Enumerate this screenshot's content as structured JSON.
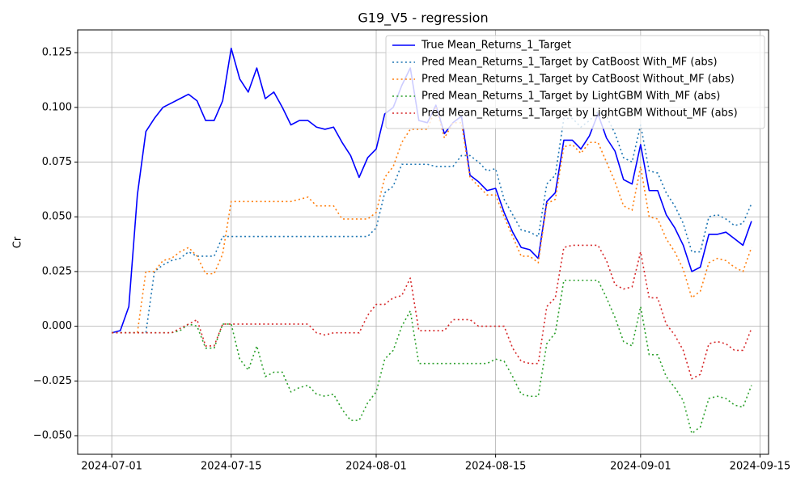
{
  "chart_data": {
    "type": "line",
    "title": "G19_V5 - regression",
    "y_label": "Cr",
    "grid": true,
    "legend": "upper right",
    "xlim": [
      "2024-06-27",
      "2024-09-16"
    ],
    "xticks": [
      "2024-07-01",
      "2024-07-15",
      "2024-08-01",
      "2024-08-15",
      "2024-09-01",
      "2024-09-15"
    ],
    "ylim": [
      -0.0585,
      0.1354
    ],
    "yticks": [
      {
        "value": -0.05,
        "label": "−0.050"
      },
      {
        "value": -0.025,
        "label": "−0.025"
      },
      {
        "value": 0,
        "label": "0.000"
      },
      0.025,
      {
        "value": 0.05,
        "label": "0.050"
      },
      0.075,
      {
        "value": 0.1,
        "label": "0.100"
      },
      0.125
    ],
    "x": [
      "2024-07-01",
      "2024-07-02",
      "2024-07-03",
      "2024-07-04",
      "2024-07-05",
      "2024-07-06",
      "2024-07-07",
      "2024-07-08",
      "2024-07-09",
      "2024-07-10",
      "2024-07-11",
      "2024-07-12",
      "2024-07-13",
      "2024-07-14",
      "2024-07-15",
      "2024-07-16",
      "2024-07-17",
      "2024-07-18",
      "2024-07-19",
      "2024-07-20",
      "2024-07-21",
      "2024-07-22",
      "2024-07-23",
      "2024-07-24",
      "2024-07-25",
      "2024-07-26",
      "2024-07-27",
      "2024-07-28",
      "2024-07-29",
      "2024-07-30",
      "2024-07-31",
      "2024-08-01",
      "2024-08-02",
      "2024-08-03",
      "2024-08-04",
      "2024-08-05",
      "2024-08-06",
      "2024-08-07",
      "2024-08-08",
      "2024-08-09",
      "2024-08-10",
      "2024-08-11",
      "2024-08-12",
      "2024-08-13",
      "2024-08-14",
      "2024-08-15",
      "2024-08-16",
      "2024-08-17",
      "2024-08-18",
      "2024-08-19",
      "2024-08-20",
      "2024-08-21",
      "2024-08-22",
      "2024-08-23",
      "2024-08-24",
      "2024-08-25",
      "2024-08-26",
      "2024-08-27",
      "2024-08-28",
      "2024-08-29",
      "2024-08-30",
      "2024-08-31",
      "2024-09-01",
      "2024-09-02",
      "2024-09-03",
      "2024-09-04",
      "2024-09-05",
      "2024-09-06",
      "2024-09-07",
      "2024-09-08",
      "2024-09-09",
      "2024-09-10",
      "2024-09-11",
      "2024-09-12",
      "2024-09-13",
      "2024-09-14"
    ],
    "series": [
      {
        "name": "True Mean_Returns_1_Target",
        "color": "#0000ff",
        "linestyle": "solid",
        "values": [
          -0.003,
          -0.002,
          0.009,
          0.06,
          0.089,
          0.095,
          0.1,
          0.102,
          0.104,
          0.106,
          0.103,
          0.094,
          0.094,
          0.103,
          0.127,
          0.113,
          0.107,
          0.118,
          0.104,
          0.107,
          0.1,
          0.092,
          0.094,
          0.094,
          0.091,
          0.09,
          0.091,
          0.084,
          0.078,
          0.068,
          0.077,
          0.081,
          0.097,
          0.1,
          0.11,
          0.118,
          0.094,
          0.093,
          0.101,
          0.088,
          0.093,
          0.096,
          0.069,
          0.066,
          0.062,
          0.063,
          0.052,
          0.043,
          0.036,
          0.035,
          0.031,
          0.057,
          0.061,
          0.085,
          0.085,
          0.081,
          0.087,
          0.097,
          0.086,
          0.08,
          0.067,
          0.065,
          0.083,
          0.062,
          0.062,
          0.051,
          0.045,
          0.037,
          0.025,
          0.027,
          0.042,
          0.042,
          0.043,
          0.04,
          0.037,
          0.048
        ]
      },
      {
        "name": "Pred Mean_Returns_1_Target by CatBoost With_MF (abs)",
        "color": "#1f77b4",
        "linestyle": "dotted",
        "values": [
          -0.003,
          -0.003,
          -0.003,
          -0.003,
          -0.003,
          0.025,
          0.028,
          0.03,
          0.031,
          0.034,
          0.032,
          0.032,
          0.032,
          0.041,
          0.041,
          0.041,
          0.041,
          0.041,
          0.041,
          0.041,
          0.041,
          0.041,
          0.041,
          0.041,
          0.041,
          0.041,
          0.041,
          0.041,
          0.041,
          0.041,
          0.041,
          0.045,
          0.061,
          0.064,
          0.074,
          0.074,
          0.074,
          0.074,
          0.073,
          0.073,
          0.073,
          0.078,
          0.078,
          0.075,
          0.071,
          0.072,
          0.058,
          0.051,
          0.044,
          0.043,
          0.041,
          0.065,
          0.069,
          0.095,
          0.095,
          0.091,
          0.094,
          0.098,
          0.096,
          0.088,
          0.077,
          0.075,
          0.092,
          0.071,
          0.07,
          0.061,
          0.055,
          0.047,
          0.034,
          0.034,
          0.05,
          0.051,
          0.049,
          0.046,
          0.047,
          0.056
        ]
      },
      {
        "name": "Pred Mean_Returns_1_Target by CatBoost Without_MF (abs)",
        "color": "#ff7f0e",
        "linestyle": "dotted",
        "values": [
          -0.003,
          -0.003,
          -0.003,
          -0.003,
          0.025,
          0.025,
          0.03,
          0.031,
          0.034,
          0.036,
          0.032,
          0.024,
          0.024,
          0.033,
          0.057,
          0.057,
          0.057,
          0.057,
          0.057,
          0.057,
          0.057,
          0.057,
          0.058,
          0.059,
          0.055,
          0.055,
          0.055,
          0.049,
          0.049,
          0.049,
          0.049,
          0.052,
          0.068,
          0.073,
          0.084,
          0.09,
          0.09,
          0.09,
          0.1,
          0.086,
          0.093,
          0.093,
          0.068,
          0.064,
          0.06,
          0.06,
          0.05,
          0.041,
          0.032,
          0.032,
          0.029,
          0.056,
          0.058,
          0.082,
          0.083,
          0.079,
          0.084,
          0.084,
          0.075,
          0.066,
          0.055,
          0.053,
          0.073,
          0.05,
          0.049,
          0.04,
          0.034,
          0.026,
          0.013,
          0.016,
          0.029,
          0.031,
          0.03,
          0.027,
          0.025,
          0.036
        ]
      },
      {
        "name": "Pred Mean_Returns_1_Target by LightGBM With_MF (abs)",
        "color": "#2ca02c",
        "linestyle": "dotted",
        "values": [
          -0.003,
          -0.003,
          -0.003,
          -0.003,
          -0.003,
          -0.003,
          -0.003,
          -0.003,
          -0.002,
          0.001,
          0.0,
          -0.01,
          -0.01,
          0.001,
          0.001,
          -0.015,
          -0.02,
          -0.009,
          -0.023,
          -0.021,
          -0.021,
          -0.03,
          -0.028,
          -0.027,
          -0.031,
          -0.032,
          -0.031,
          -0.038,
          -0.043,
          -0.043,
          -0.035,
          -0.03,
          -0.015,
          -0.011,
          0.0,
          0.007,
          -0.017,
          -0.017,
          -0.017,
          -0.017,
          -0.017,
          -0.017,
          -0.017,
          -0.017,
          -0.017,
          -0.015,
          -0.016,
          -0.023,
          -0.031,
          -0.032,
          -0.032,
          -0.008,
          -0.003,
          0.021,
          0.021,
          0.021,
          0.021,
          0.021,
          0.013,
          0.004,
          -0.007,
          -0.009,
          0.009,
          -0.013,
          -0.013,
          -0.023,
          -0.028,
          -0.034,
          -0.049,
          -0.046,
          -0.033,
          -0.032,
          -0.033,
          -0.036,
          -0.037,
          -0.027
        ]
      },
      {
        "name": "Pred Mean_Returns_1_Target by LightGBM Without_MF (abs)",
        "color": "#d62728",
        "linestyle": "dotted",
        "values": [
          -0.003,
          -0.003,
          -0.003,
          -0.003,
          -0.003,
          -0.003,
          -0.003,
          -0.003,
          -0.001,
          0.001,
          0.003,
          -0.009,
          -0.009,
          0.001,
          0.001,
          0.001,
          0.001,
          0.001,
          0.001,
          0.001,
          0.001,
          0.001,
          0.001,
          0.001,
          -0.003,
          -0.004,
          -0.003,
          -0.003,
          -0.003,
          -0.003,
          0.005,
          0.01,
          0.01,
          0.013,
          0.014,
          0.022,
          -0.002,
          -0.002,
          -0.002,
          -0.002,
          0.003,
          0.003,
          0.003,
          0.0,
          0.0,
          0.0,
          0.0,
          -0.01,
          -0.016,
          -0.017,
          -0.017,
          0.009,
          0.013,
          0.036,
          0.037,
          0.037,
          0.037,
          0.037,
          0.03,
          0.019,
          0.017,
          0.018,
          0.034,
          0.013,
          0.013,
          0.001,
          -0.004,
          -0.011,
          -0.024,
          -0.022,
          -0.008,
          -0.007,
          -0.008,
          -0.011,
          -0.011,
          -0.001
        ]
      }
    ]
  }
}
